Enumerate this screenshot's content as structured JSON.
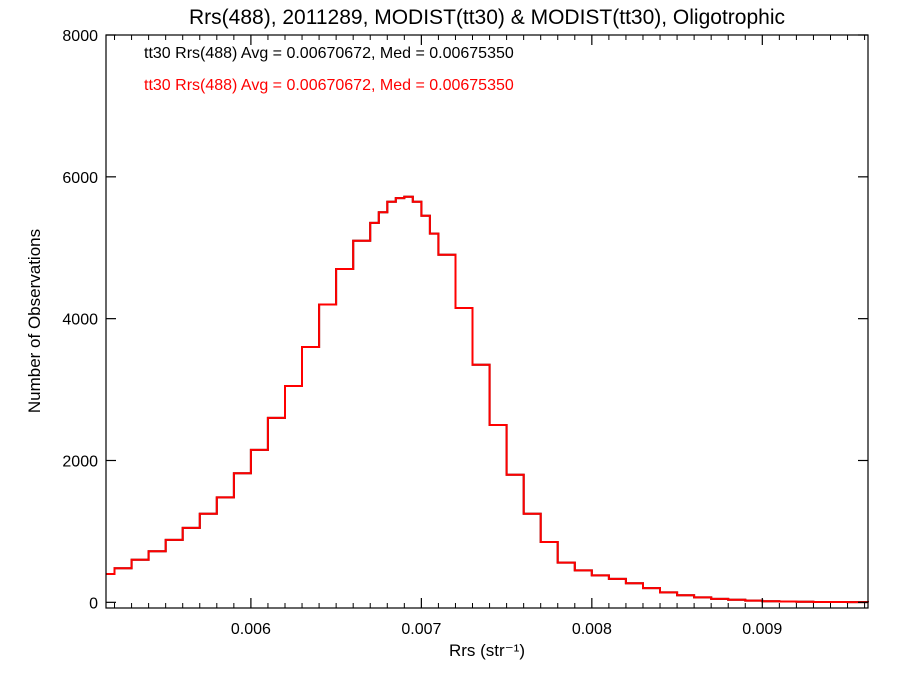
{
  "chart_data": {
    "type": "line",
    "title": "Rrs(488), 2011289, MODIST(tt30) & MODIST(tt30), Oligotrophic",
    "xlabel": "Rrs (str⁻¹)",
    "ylabel": "Number of Observations",
    "xlim": [
      0.00515,
      0.00962
    ],
    "ylim": [
      -80,
      8000
    ],
    "xticks": [
      0.006,
      0.007,
      0.008,
      0.009
    ],
    "xtick_labels": [
      "0.006",
      "0.007",
      "0.008",
      "0.009"
    ],
    "yticks": [
      0,
      2000,
      4000,
      6000,
      8000
    ],
    "ytick_labels": [
      "0",
      "2000",
      "4000",
      "6000",
      "8000"
    ],
    "grid": false,
    "annotations": [
      {
        "text": "tt30 Rrs(488) Avg = 0.00670672, Med = 0.00675350",
        "color": "#000000"
      },
      {
        "text": "tt30 Rrs(488) Avg = 0.00670672, Med = 0.00675350",
        "color": "#ff0000"
      }
    ],
    "series": [
      {
        "color": "#000000",
        "x": [
          0.00515,
          0.0052,
          0.0053,
          0.0054,
          0.0055,
          0.0056,
          0.0057,
          0.0058,
          0.0059,
          0.006,
          0.0061,
          0.0062,
          0.0063,
          0.0064,
          0.0065,
          0.0066,
          0.0067,
          0.00675,
          0.0068,
          0.00685,
          0.0069,
          0.00695,
          0.007,
          0.00705,
          0.0071,
          0.0072,
          0.0073,
          0.0074,
          0.0075,
          0.0076,
          0.0077,
          0.0078,
          0.0079,
          0.008,
          0.0081,
          0.0082,
          0.0083,
          0.0084,
          0.0085,
          0.0086,
          0.0087,
          0.0088,
          0.0089,
          0.009,
          0.0091,
          0.0092,
          0.0093,
          0.0094,
          0.0095,
          0.00962
        ],
        "y": [
          400,
          480,
          600,
          720,
          880,
          1050,
          1250,
          1480,
          1820,
          2150,
          2600,
          3050,
          3600,
          4200,
          4700,
          5100,
          5350,
          5500,
          5650,
          5700,
          5720,
          5650,
          5450,
          5200,
          4900,
          4150,
          3350,
          2500,
          1800,
          1250,
          850,
          560,
          450,
          380,
          330,
          270,
          200,
          140,
          100,
          70,
          48,
          35,
          24,
          16,
          11,
          8,
          5,
          4,
          3,
          2
        ]
      },
      {
        "color": "#ff0000",
        "x": [
          0.00515,
          0.0052,
          0.0053,
          0.0054,
          0.0055,
          0.0056,
          0.0057,
          0.0058,
          0.0059,
          0.006,
          0.0061,
          0.0062,
          0.0063,
          0.0064,
          0.0065,
          0.0066,
          0.0067,
          0.00675,
          0.0068,
          0.00685,
          0.0069,
          0.00695,
          0.007,
          0.00705,
          0.0071,
          0.0072,
          0.0073,
          0.0074,
          0.0075,
          0.0076,
          0.0077,
          0.0078,
          0.0079,
          0.008,
          0.0081,
          0.0082,
          0.0083,
          0.0084,
          0.0085,
          0.0086,
          0.0087,
          0.0088,
          0.0089,
          0.009,
          0.0091,
          0.0092,
          0.0093,
          0.0094,
          0.0095,
          0.00962
        ],
        "y": [
          400,
          480,
          600,
          720,
          880,
          1050,
          1250,
          1480,
          1820,
          2150,
          2600,
          3050,
          3600,
          4200,
          4700,
          5100,
          5350,
          5500,
          5650,
          5700,
          5720,
          5650,
          5450,
          5200,
          4900,
          4150,
          3350,
          2500,
          1800,
          1250,
          850,
          560,
          450,
          380,
          330,
          270,
          200,
          140,
          100,
          70,
          48,
          35,
          24,
          16,
          11,
          8,
          5,
          4,
          3,
          2
        ]
      }
    ]
  }
}
